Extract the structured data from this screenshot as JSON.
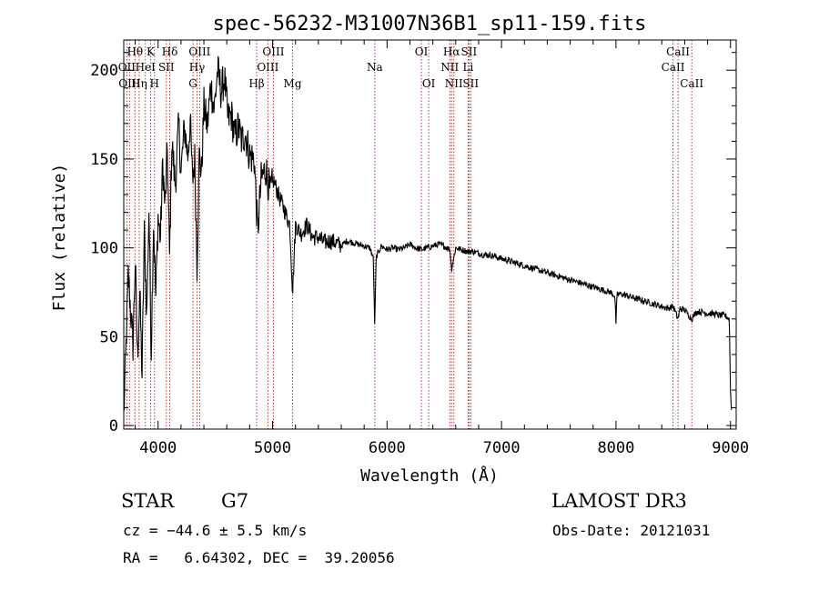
{
  "chart_data": {
    "type": "line",
    "title": "spec-56232-M31007N36B1_sp11-159.fits",
    "xlabel": "Wavelength (Å)",
    "ylabel": "Flux (relative)",
    "xlim": [
      3700,
      9050
    ],
    "ylim": [
      -2,
      217
    ],
    "xticks": [
      4000,
      5000,
      6000,
      7000,
      8000,
      9000
    ],
    "xtick_labels": [
      "4000",
      "5000",
      "6000",
      "7000",
      "8000",
      "9000"
    ],
    "yticks": [
      0,
      50,
      100,
      150,
      200
    ],
    "ytick_labels": [
      "0",
      "50",
      "100",
      "150",
      "200"
    ],
    "grid": false,
    "line_color": "#000000",
    "marker_color": "#b22222",
    "spectral_lines": [
      {
        "label": "Hθ",
        "x": 3798,
        "row": 0
      },
      {
        "label": "OII",
        "x": 3727,
        "row": 1
      },
      {
        "label": "OIII",
        "x": 3750,
        "row": 2
      },
      {
        "label": "Hη",
        "x": 3835,
        "row": 2
      },
      {
        "label": "HeI",
        "x": 3889,
        "row": 1
      },
      {
        "label": "K",
        "x": 3934,
        "row": 0
      },
      {
        "label": "H",
        "x": 3968,
        "row": 2
      },
      {
        "label": "SII",
        "x": 4072,
        "row": 1
      },
      {
        "label": "Hδ",
        "x": 4102,
        "row": 0
      },
      {
        "label": "OIII",
        "x": 4363,
        "row": 0
      },
      {
        "label": "Hγ",
        "x": 4340,
        "row": 1
      },
      {
        "label": "G",
        "x": 4305,
        "row": 2
      },
      {
        "label": "OIII",
        "x": 5007,
        "row": 0
      },
      {
        "label": "OIII",
        "x": 4959,
        "row": 1
      },
      {
        "label": "Hβ",
        "x": 4861,
        "row": 2
      },
      {
        "label": "Mg",
        "x": 5175,
        "row": 2
      },
      {
        "label": "Na",
        "x": 5893,
        "row": 1
      },
      {
        "label": "OI",
        "x": 6300,
        "row": 0
      },
      {
        "label": "OI",
        "x": 6364,
        "row": 2
      },
      {
        "label": "Hα",
        "x": 6563,
        "row": 0
      },
      {
        "label": "NII",
        "x": 6548,
        "row": 1
      },
      {
        "label": "NII",
        "x": 6584,
        "row": 2
      },
      {
        "label": "SII",
        "x": 6716,
        "row": 0
      },
      {
        "label": "Li",
        "x": 6708,
        "row": 1
      },
      {
        "label": "SII",
        "x": 6731,
        "row": 2
      },
      {
        "label": "CaII",
        "x": 8542,
        "row": 0
      },
      {
        "label": "CaII",
        "x": 8498,
        "row": 1
      },
      {
        "label": "CaII",
        "x": 8662,
        "row": 2
      }
    ],
    "series": [
      {
        "x": [
          3700,
          3720,
          3740,
          3760,
          3780,
          3800,
          3820,
          3840,
          3860,
          3880,
          3900,
          3920,
          3940,
          3960,
          3980,
          4000,
          4020,
          4040,
          4060,
          4080,
          4100,
          4120,
          4150,
          4180,
          4200,
          4230,
          4260,
          4280,
          4300,
          4320,
          4340,
          4360,
          4380,
          4400,
          4430,
          4460,
          4490,
          4520,
          4550,
          4580,
          4610,
          4640,
          4670,
          4700,
          4730,
          4760,
          4800,
          4840,
          4870,
          4900,
          4940,
          4980,
          5010,
          5050,
          5100,
          5150,
          5175,
          5200,
          5250,
          5300,
          5350,
          5400,
          5450,
          5500,
          5550,
          5600,
          5650,
          5700,
          5750,
          5800,
          5850,
          5880,
          5893,
          5905,
          5950,
          6000,
          6050,
          6100,
          6150,
          6200,
          6250,
          6300,
          6350,
          6400,
          6450,
          6500,
          6550,
          6563,
          6600,
          6650,
          6700,
          6750,
          6800,
          6850,
          6900,
          6950,
          7000,
          7050,
          7100,
          7150,
          7200,
          7250,
          7300,
          7350,
          7400,
          7450,
          7500,
          7550,
          7600,
          7650,
          7700,
          7750,
          7800,
          7850,
          7900,
          7950,
          7990,
          8000,
          8010,
          8050,
          8100,
          8150,
          8200,
          8250,
          8300,
          8350,
          8400,
          8450,
          8500,
          8542,
          8560,
          8600,
          8662,
          8700,
          8750,
          8800,
          8850,
          8900,
          8950,
          8990,
          9000,
          9010
        ],
        "y": [
          5,
          45,
          85,
          65,
          45,
          92,
          38,
          75,
          28,
          108,
          62,
          122,
          42,
          115,
          72,
          118,
          105,
          148,
          122,
          155,
          95,
          160,
          135,
          170,
          142,
          168,
          152,
          172,
          138,
          150,
          90,
          152,
          142,
          180,
          168,
          192,
          178,
          200,
          188,
          196,
          172,
          175,
          162,
          168,
          160,
          165,
          152,
          150,
          108,
          138,
          145,
          130,
          138,
          130,
          122,
          113,
          75,
          113,
          108,
          113,
          106,
          106,
          103,
          104,
          103,
          101,
          104,
          103,
          102,
          101,
          100,
          94,
          55,
          95,
          101,
          99,
          100,
          99,
          100,
          102,
          100,
          99,
          100,
          101,
          102,
          101,
          99,
          88,
          100,
          99,
          98,
          98,
          97,
          96,
          96,
          95,
          94,
          93,
          92,
          91,
          90,
          89,
          88,
          87,
          86,
          85,
          84,
          83,
          82,
          81,
          80,
          79,
          78,
          77,
          76,
          75,
          73,
          58,
          74,
          74,
          73,
          72,
          71,
          70,
          69,
          68,
          67,
          66,
          67,
          60,
          66,
          65,
          60,
          64,
          64,
          63,
          63,
          62,
          62,
          60,
          20,
          6
        ]
      }
    ]
  },
  "info": {
    "object_class": "STAR",
    "subclass": "G7",
    "survey": "LAMOST DR3",
    "redshift": "cz = −44.6 ± 5.5 km/s",
    "obs_date": "Obs-Date: 20121031",
    "coords": "RA =   6.64302, DEC =  39.20056"
  }
}
